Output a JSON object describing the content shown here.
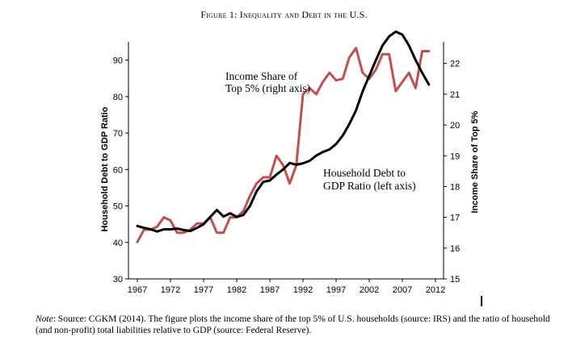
{
  "title": {
    "prefix": "Figure 1:",
    "text": "Inequality and Debt in the U.S."
  },
  "note": {
    "label": "Note",
    "text": ": Source: CGKM (2014). The figure plots the income share of the top 5% of U.S. households (source: IRS) and the ratio of household (and non-profit) total liabilities relative to GDP (source: Federal Reserve)."
  },
  "chart_data": {
    "type": "line",
    "title": "Figure 1: Inequality and Debt in the U.S.",
    "xlabel": "",
    "ylabel_left": "Household Debt to GDP Ratio",
    "ylabel_right": "Income Share of Top 5%",
    "xlim": [
      1967,
      2012
    ],
    "ylim_left": [
      30,
      95
    ],
    "ylim_right": [
      15,
      22.7
    ],
    "x_ticks": [
      1967,
      1972,
      1977,
      1982,
      1987,
      1992,
      1997,
      2002,
      2007,
      2012
    ],
    "y_ticks_left": [
      30,
      40,
      50,
      60,
      70,
      80,
      90
    ],
    "y_ticks_right": [
      15,
      16,
      17,
      18,
      19,
      20,
      21,
      22
    ],
    "grid": false,
    "annotations": [
      {
        "lines": [
          "Income Share of",
          "Top 5% (right axis)"
        ],
        "series": "Income Share of Top 5%"
      },
      {
        "lines": [
          "Household Debt to",
          "GDP Ratio (left axis)"
        ],
        "series": "Household Debt to GDP Ratio"
      }
    ],
    "series": [
      {
        "name": "Household Debt to GDP Ratio",
        "axis": "left",
        "color": "#000000",
        "x": [
          1967,
          1968,
          1969,
          1970,
          1971,
          1972,
          1973,
          1974,
          1975,
          1976,
          1977,
          1978,
          1979,
          1980,
          1981,
          1982,
          1983,
          1984,
          1985,
          1986,
          1987,
          1988,
          1989,
          1990,
          1991,
          1992,
          1993,
          1994,
          1995,
          1996,
          1997,
          1998,
          1999,
          2000,
          2001,
          2002,
          2003,
          2004,
          2005,
          2006,
          2007,
          2008,
          2009,
          2010,
          2011
        ],
        "values": [
          44.5,
          44,
          43.6,
          43,
          43.6,
          43.6,
          43.8,
          43.4,
          43.1,
          44,
          45,
          47,
          48.9,
          47.1,
          48,
          47,
          47.5,
          50,
          54,
          56.6,
          57,
          58.6,
          60,
          61.8,
          61.3,
          61.7,
          62.4,
          63.8,
          64.8,
          65.5,
          67,
          69.3,
          72.5,
          76.2,
          81.4,
          85.7,
          90,
          94,
          96.5,
          97.8,
          97,
          94,
          90,
          86.5,
          83.3
        ]
      },
      {
        "name": "Income Share of Top 5%",
        "axis": "right",
        "color": "#c0504d",
        "x": [
          1967,
          1968,
          1969,
          1970,
          1971,
          1972,
          1973,
          1974,
          1975,
          1976,
          1977,
          1978,
          1979,
          1980,
          1981,
          1982,
          1983,
          1984,
          1985,
          1986,
          1987,
          1988,
          1989,
          1990,
          1991,
          1992,
          1993,
          1994,
          1995,
          1996,
          1997,
          1998,
          1999,
          2000,
          2001,
          2002,
          2003,
          2004,
          2005,
          2006,
          2007,
          2008,
          2009,
          2010,
          2011
        ],
        "values": [
          16.2,
          16.6,
          16.6,
          16.7,
          17,
          16.9,
          16.5,
          16.5,
          16.6,
          16.8,
          16.8,
          17,
          16.5,
          16.5,
          17,
          17,
          17.2,
          17.7,
          18.1,
          18.3,
          18.3,
          19,
          18.7,
          18.1,
          18.7,
          21,
          21.2,
          21,
          21.4,
          21.7,
          21.45,
          21.5,
          22.2,
          22.5,
          21.7,
          21.5,
          21.8,
          22.3,
          22.3,
          21.1,
          21.4,
          21.7,
          21.2,
          22.4,
          22.4
        ]
      }
    ]
  }
}
